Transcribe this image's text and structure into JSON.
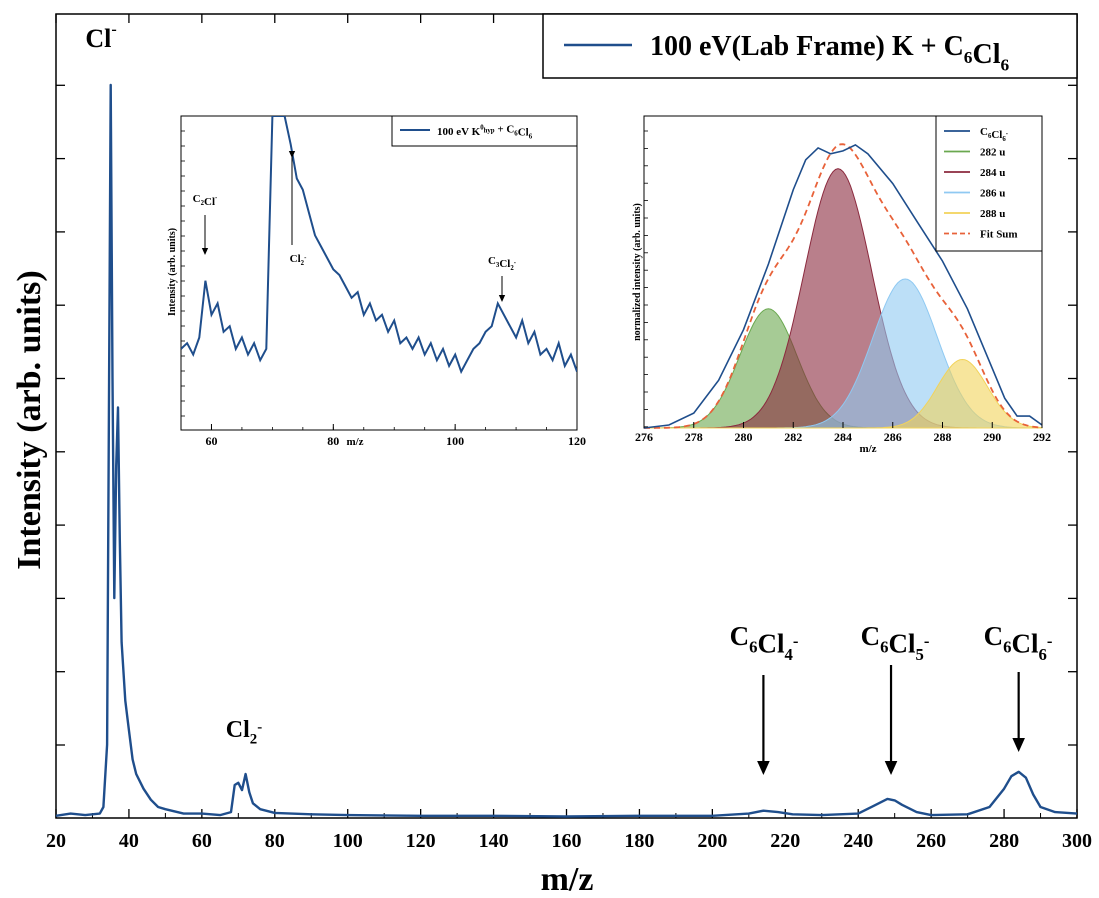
{
  "chart_data": [
    {
      "type": "line",
      "xlabel": "m/z",
      "ylabel": "Intensity (arb. units)",
      "xlim": [
        20,
        300
      ],
      "ylim": [
        0,
        100
      ],
      "xticks": [
        "20",
        "40",
        "60",
        "80",
        "100",
        "120",
        "140",
        "160",
        "180",
        "200",
        "220",
        "240",
        "260",
        "280",
        "300"
      ],
      "yticks_shown": false,
      "series": [
        {
          "name": "100 eV(Lab Frame) K + C6Cl6",
          "color": "#1f4e8c",
          "x": [
            20,
            24,
            28,
            32,
            33,
            34,
            34.5,
            35,
            35.5,
            36,
            36.5,
            37,
            37.5,
            38,
            39,
            40,
            41,
            42,
            44,
            46,
            48,
            50,
            55,
            60,
            65,
            68,
            69,
            70,
            71,
            72,
            73,
            74,
            76,
            80,
            90,
            100,
            120,
            140,
            160,
            180,
            200,
            210,
            214,
            218,
            222,
            230,
            240,
            244,
            248,
            250,
            252,
            256,
            260,
            270,
            276,
            280,
            282,
            284,
            286,
            288,
            290,
            294,
            300
          ],
          "y": [
            0.3,
            0.6,
            0.4,
            0.6,
            1.5,
            10,
            55,
            100,
            60,
            30,
            48,
            56,
            38,
            24,
            16,
            12,
            8,
            6,
            4,
            2.5,
            1.5,
            1.2,
            0.6,
            0.6,
            0.4,
            0.8,
            4.5,
            4.8,
            3.8,
            6,
            3.5,
            2,
            1.2,
            0.7,
            0.5,
            0.4,
            0.3,
            0.3,
            0.2,
            0.3,
            0.3,
            0.6,
            1,
            0.8,
            0.5,
            0.4,
            0.6,
            1.6,
            2.6,
            2.4,
            1.8,
            0.8,
            0.4,
            0.5,
            1.5,
            4,
            5.7,
            6.3,
            5.5,
            3.2,
            1.5,
            0.8,
            0.6
          ]
        }
      ],
      "legend": {
        "placement": "top-right",
        "label_main": "100 eV(Lab Frame) K + C",
        "sub1": "6",
        "mid": "Cl",
        "sub2": "6"
      },
      "annotations": [
        {
          "text": "Cl",
          "sup": "-",
          "x": 35
        },
        {
          "text": "Cl",
          "sub": "2",
          "sup": "-",
          "x": 72
        },
        {
          "text": "C",
          "sub": "6",
          "text2": "Cl",
          "sub2": "4",
          "sup": "-",
          "x": 214,
          "arrow": true
        },
        {
          "text": "C",
          "sub": "6",
          "text2": "Cl",
          "sub2": "5",
          "sup": "-",
          "x": 249,
          "arrow": true
        },
        {
          "text": "C",
          "sub": "6",
          "text2": "Cl",
          "sub2": "6",
          "sup": "-",
          "x": 284,
          "arrow": true
        }
      ]
    },
    {
      "type": "line",
      "xlabel": "m/z",
      "ylabel": "Intensity (arb. units)",
      "xlim": [
        55,
        120
      ],
      "xticks": [
        "60",
        "80",
        "100",
        "120"
      ],
      "legend": {
        "placement": "top-right",
        "label": "100 eV K",
        "sup": "0",
        "sub": "hyp",
        "rest": " + C",
        "sub2": "6",
        "mid": "Cl",
        "sub3": "6"
      },
      "series": [
        {
          "name": "100 eV K0hyp + C6Cl6",
          "color": "#1f4e8c",
          "x": [
            55,
            56,
            57,
            58,
            59,
            60,
            61,
            62,
            63,
            64,
            65,
            66,
            67,
            68,
            69,
            70,
            71,
            72,
            73,
            74,
            75,
            76,
            77,
            78,
            79,
            80,
            81,
            82,
            83,
            84,
            85,
            86,
            87,
            88,
            89,
            90,
            91,
            92,
            93,
            94,
            95,
            96,
            97,
            98,
            99,
            100,
            101,
            102,
            103,
            104,
            105,
            106,
            107,
            108,
            109,
            110,
            111,
            112,
            113,
            114,
            115,
            116,
            117,
            118,
            119,
            120
          ],
          "y": [
            18,
            20,
            16,
            22,
            42,
            30,
            34,
            24,
            26,
            18,
            22,
            16,
            20,
            14,
            18,
            100,
            100,
            100,
            90,
            78,
            74,
            66,
            58,
            54,
            50,
            46,
            44,
            40,
            36,
            38,
            30,
            34,
            28,
            30,
            24,
            28,
            20,
            22,
            18,
            22,
            16,
            20,
            14,
            18,
            12,
            16,
            10,
            14,
            18,
            20,
            24,
            26,
            34,
            30,
            26,
            22,
            28,
            20,
            24,
            16,
            18,
            14,
            20,
            12,
            16,
            10
          ]
        }
      ],
      "annotations": [
        {
          "text": "C",
          "sub": "2",
          "text2": "Cl",
          "sup": "-",
          "x": 59
        },
        {
          "text": "Cl",
          "sub": "2",
          "sup": "-",
          "x": 74
        },
        {
          "text": "C",
          "sub": "3",
          "text2": "Cl",
          "sub2": "2",
          "sup": "-",
          "x": 107
        }
      ]
    },
    {
      "type": "area",
      "xlabel": "m/z",
      "ylabel": "normalized intensity (arb. units)",
      "xlim": [
        276,
        292
      ],
      "ylim": [
        0,
        1
      ],
      "xticks": [
        "276",
        "278",
        "280",
        "282",
        "284",
        "286",
        "288",
        "290",
        "292"
      ],
      "series": [
        {
          "name": "282 u",
          "color": "#6aa84f",
          "center": 281,
          "sigma": 1.15,
          "amp": 0.4
        },
        {
          "name": "284 u",
          "color": "#8b2a3e",
          "center": 283.8,
          "sigma": 1.35,
          "amp": 0.87
        },
        {
          "name": "286 u",
          "color": "#8fc9f2",
          "center": 286.5,
          "sigma": 1.3,
          "amp": 0.5
        },
        {
          "name": "288 u",
          "color": "#f2d35a",
          "center": 288.8,
          "sigma": 1.0,
          "amp": 0.23
        }
      ],
      "data_line": {
        "name": "C6Cl6-",
        "color": "#1f4e8c",
        "x": [
          276,
          277,
          278,
          279,
          280,
          281,
          282,
          282.5,
          283,
          283.5,
          284,
          284.5,
          285,
          286,
          287,
          288,
          289,
          290,
          290.5,
          291,
          291.5,
          292
        ],
        "y": [
          0,
          0.01,
          0.05,
          0.16,
          0.33,
          0.55,
          0.8,
          0.9,
          0.94,
          0.92,
          0.93,
          0.95,
          0.92,
          0.82,
          0.69,
          0.56,
          0.4,
          0.2,
          0.1,
          0.04,
          0.04,
          0.01
        ]
      },
      "fit_sum": {
        "name": "Fit Sum",
        "color": "#e8623a"
      },
      "legend": {
        "placement": "top-right",
        "labels": [
          "C6Cl6-",
          "282 u",
          "284 u",
          "286 u",
          "288 u",
          "Fit Sum"
        ]
      }
    }
  ]
}
